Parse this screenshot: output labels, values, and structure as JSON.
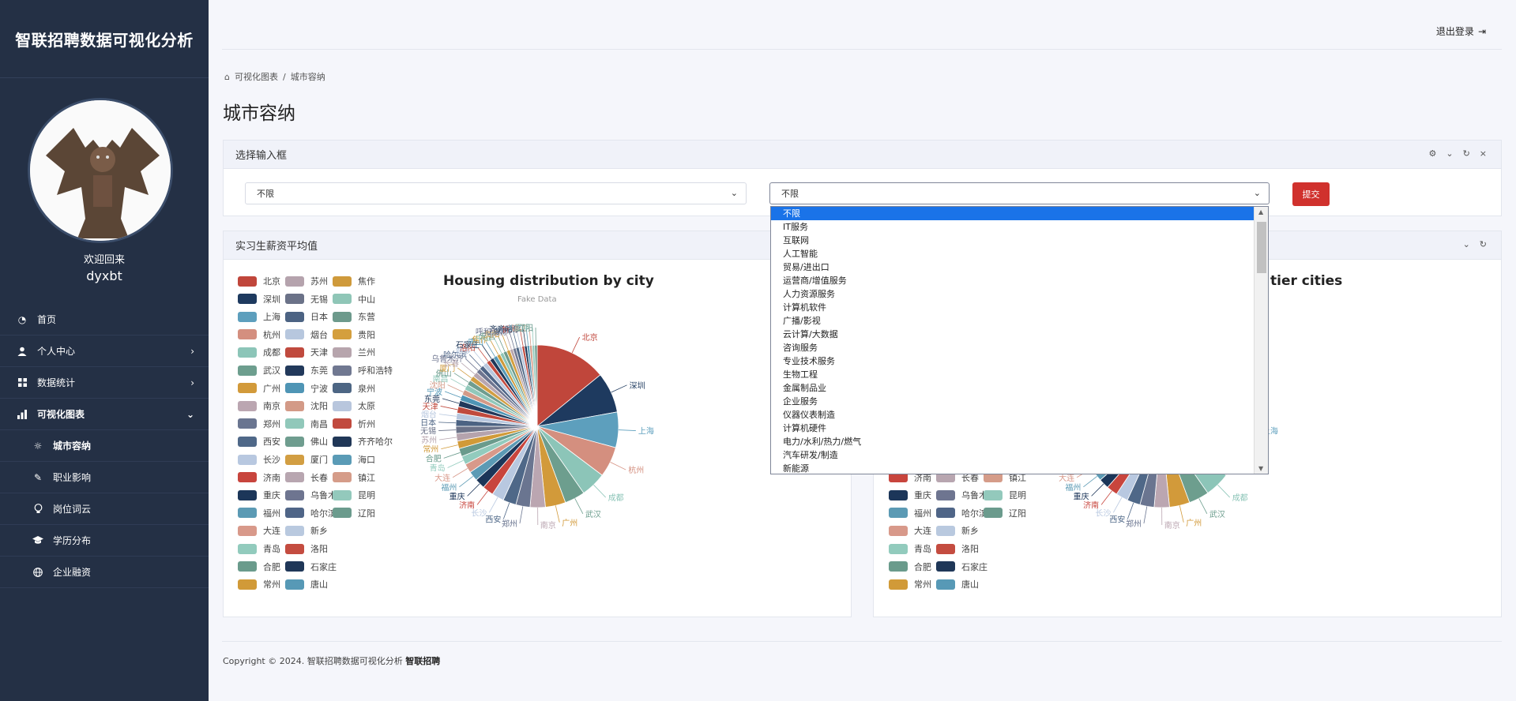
{
  "app": {
    "title": "智联招聘数据可视化分析"
  },
  "user": {
    "welcome": "欢迎回来",
    "name": "dyxbt"
  },
  "nav": {
    "home": "首页",
    "personal": "个人中心",
    "stats": "数据统计",
    "charts": "可视化图表",
    "city": "城市容纳",
    "industry": "职业影响",
    "word": "岗位词云",
    "edu": "学历分布",
    "finance": "企业融资"
  },
  "topbar": {
    "logout": "退出登录"
  },
  "breadcrumb": {
    "root": "可视化图表",
    "sep": "/",
    "current": "城市容纳"
  },
  "page": {
    "title": "城市容纳"
  },
  "filter": {
    "header": "选择输入框",
    "select1": "不限",
    "select2": "不限",
    "submit": "提交",
    "options": [
      "不限",
      "IT服务",
      "互联网",
      "人工智能",
      "贸易/进出口",
      "运营商/增值服务",
      "人力资源服务",
      "计算机软件",
      "广播/影视",
      "云计算/大数据",
      "咨询服务",
      "专业技术服务",
      "生物工程",
      "金属制品业",
      "企业服务",
      "仪器仪表制造",
      "计算机硬件",
      "电力/水利/热力/燃气",
      "汽车研发/制造",
      "新能源"
    ]
  },
  "salary_card": {
    "header": "实习生薪资平均值"
  },
  "chart_data": [
    {
      "type": "pie",
      "title": "Housing distribution by city",
      "subtitle": "Fake Data",
      "legend_position": "left",
      "categories": [
        "北京",
        "深圳",
        "上海",
        "杭州",
        "成都",
        "武汉",
        "广州",
        "南京",
        "郑州",
        "西安",
        "长沙",
        "济南",
        "重庆",
        "福州",
        "大连",
        "青岛",
        "合肥",
        "常州",
        "苏州",
        "无锡",
        "日本",
        "烟台",
        "天津",
        "东莞",
        "宁波",
        "沈阳",
        "南昌",
        "佛山",
        "厦门",
        "长春",
        "乌鲁木齐",
        "哈尔滨",
        "新乡",
        "洛阳",
        "石家庄",
        "唐山",
        "焦作",
        "中山",
        "东营",
        "贵阳",
        "兰州",
        "呼和浩特",
        "泉州",
        "太原",
        "忻州",
        "齐齐哈尔",
        "海口",
        "镇江",
        "昆明",
        "辽阳"
      ],
      "values": [
        14.0,
        8.0,
        7.0,
        6.0,
        5.0,
        4.0,
        4.0,
        3.0,
        2.8,
        2.6,
        2.4,
        2.2,
        2.0,
        1.9,
        1.8,
        1.7,
        1.6,
        1.5,
        1.5,
        1.4,
        1.3,
        1.3,
        1.3,
        1.2,
        1.2,
        1.1,
        1.1,
        1.0,
        1.0,
        1.0,
        0.9,
        0.9,
        0.9,
        0.8,
        0.8,
        0.8,
        0.7,
        0.7,
        0.7,
        0.7,
        0.6,
        0.6,
        0.6,
        0.6,
        0.5,
        0.5,
        0.5,
        0.5,
        0.5,
        0.5
      ],
      "colors": [
        "#c0463b",
        "#1e3a5f",
        "#5d9fbd",
        "#d48f7f",
        "#8cc5b8",
        "#6d9e8e",
        "#d29a3a",
        "#bba6b1",
        "#6a7590",
        "#4f6888",
        "#b8c8e0",
        "#c8453d",
        "#1c3659",
        "#5b9ab4",
        "#d8998a",
        "#92cbbd",
        "#6a9b8c",
        "#d19a38",
        "#b5a3ad",
        "#6b7288",
        "#4c6383",
        "#b7c7de",
        "#c04a3e",
        "#22395b",
        "#4f95b5",
        "#d39a87",
        "#91c8ba",
        "#6f9d8f",
        "#d29e42",
        "#b8a6b0",
        "#6e7590",
        "#4f6587",
        "#b9c9df",
        "#c44c40",
        "#1f3758",
        "#5799b6",
        "#cf9a3b",
        "#8fc6b7",
        "#6d9a8c",
        "#d49f3e",
        "#b7a5ad",
        "#707891",
        "#4d6684",
        "#b8c6dd",
        "#c14a3e",
        "#203757",
        "#5a9bb6",
        "#d59c89",
        "#93c9bc",
        "#6b9b8d"
      ]
    },
    {
      "type": "pie",
      "title": "tier cities",
      "legend_position": "left"
    }
  ]
}
